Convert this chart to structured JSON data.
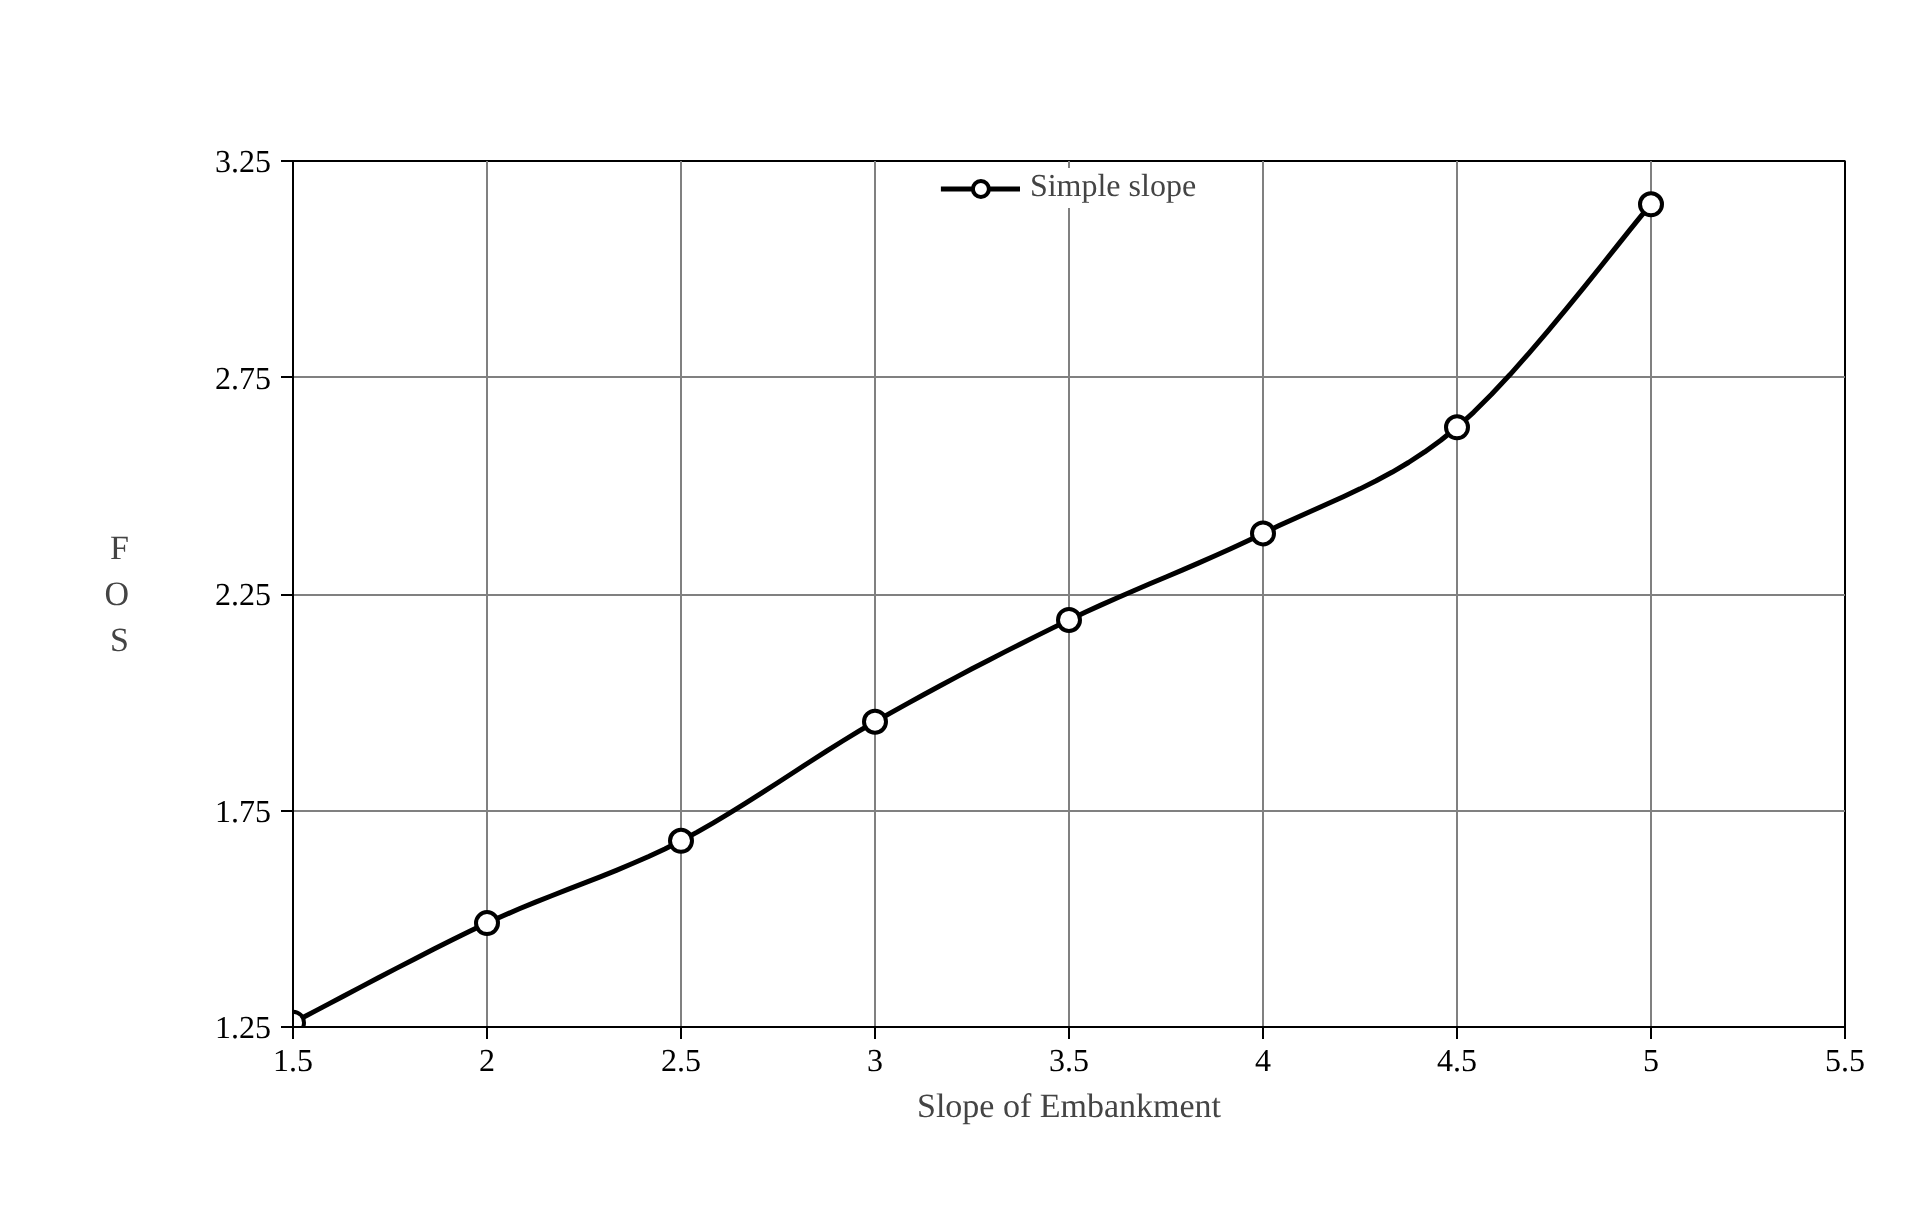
{
  "chart_data": {
    "type": "line",
    "xlabel": "Slope of Embankment",
    "ylabel": "FOS",
    "x": [
      1.5,
      2,
      2.5,
      3,
      3.5,
      4,
      4.5,
      5
    ],
    "series": [
      {
        "name": "Simple slope",
        "color": "#000000",
        "values": [
          1.26,
          1.49,
          1.68,
          1.955,
          2.19,
          2.39,
          2.635,
          3.15
        ]
      }
    ],
    "xlim": [
      1.5,
      5.5
    ],
    "xticks": [
      1.5,
      2,
      2.5,
      3,
      3.5,
      4,
      4.5,
      5,
      5.5
    ],
    "ylim": [
      1.25,
      3.25
    ],
    "yticks": [
      1.25,
      1.75,
      2.25,
      2.75,
      3.25
    ],
    "grid": true,
    "legend": "top",
    "marker": "circle",
    "line_style": "solid"
  }
}
